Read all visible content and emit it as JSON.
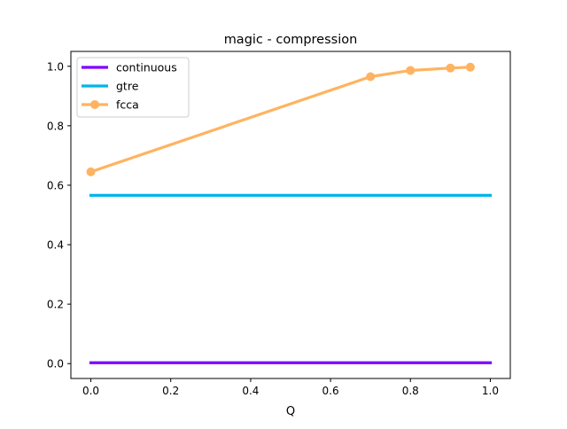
{
  "chart_data": {
    "type": "line",
    "title": "magic - compression",
    "xlabel": "Q",
    "ylabel": "",
    "xlim": [
      -0.05,
      1.05
    ],
    "ylim": [
      -0.05,
      1.05
    ],
    "xticks": [
      0.0,
      0.2,
      0.4,
      0.6,
      0.8,
      1.0
    ],
    "yticks": [
      0.0,
      0.2,
      0.4,
      0.6,
      0.8,
      1.0
    ],
    "xtick_labels": [
      "0.0",
      "0.2",
      "0.4",
      "0.6",
      "0.8",
      "1.0"
    ],
    "ytick_labels": [
      "0.0",
      "0.2",
      "0.4",
      "0.6",
      "0.8",
      "1.0"
    ],
    "grid": false,
    "legend_position": "top-left",
    "series": [
      {
        "name": "continuous",
        "color": "#8000ff",
        "markers": false,
        "x": [
          0.0,
          1.0
        ],
        "y": [
          0.003,
          0.003
        ]
      },
      {
        "name": "gtre",
        "color": "#00b5eb",
        "markers": false,
        "x": [
          0.0,
          1.0
        ],
        "y": [
          0.566,
          0.566
        ]
      },
      {
        "name": "fcca",
        "color": "#ffb360",
        "markers": true,
        "x": [
          0.0,
          0.7,
          0.8,
          0.9,
          0.95
        ],
        "y": [
          0.645,
          0.965,
          0.986,
          0.994,
          0.997
        ]
      }
    ]
  }
}
